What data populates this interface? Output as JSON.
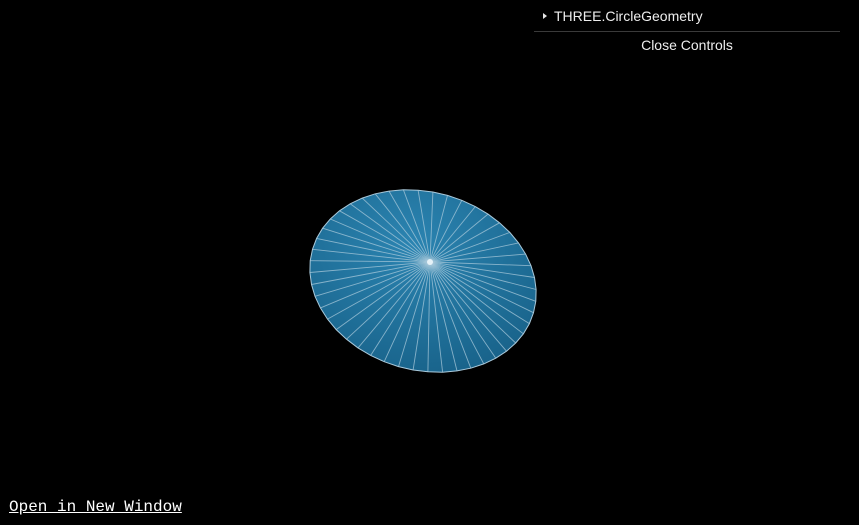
{
  "controls": {
    "folder_label": "THREE.CircleGeometry",
    "close_label": "Close Controls"
  },
  "footer": {
    "open_window_label": "Open in New Window"
  },
  "scene": {
    "geometry": "CircleGeometry",
    "segments": 48,
    "mesh_color": "#1f6f9a",
    "wireframe_color": "#a9c9db",
    "background": "#000000"
  }
}
